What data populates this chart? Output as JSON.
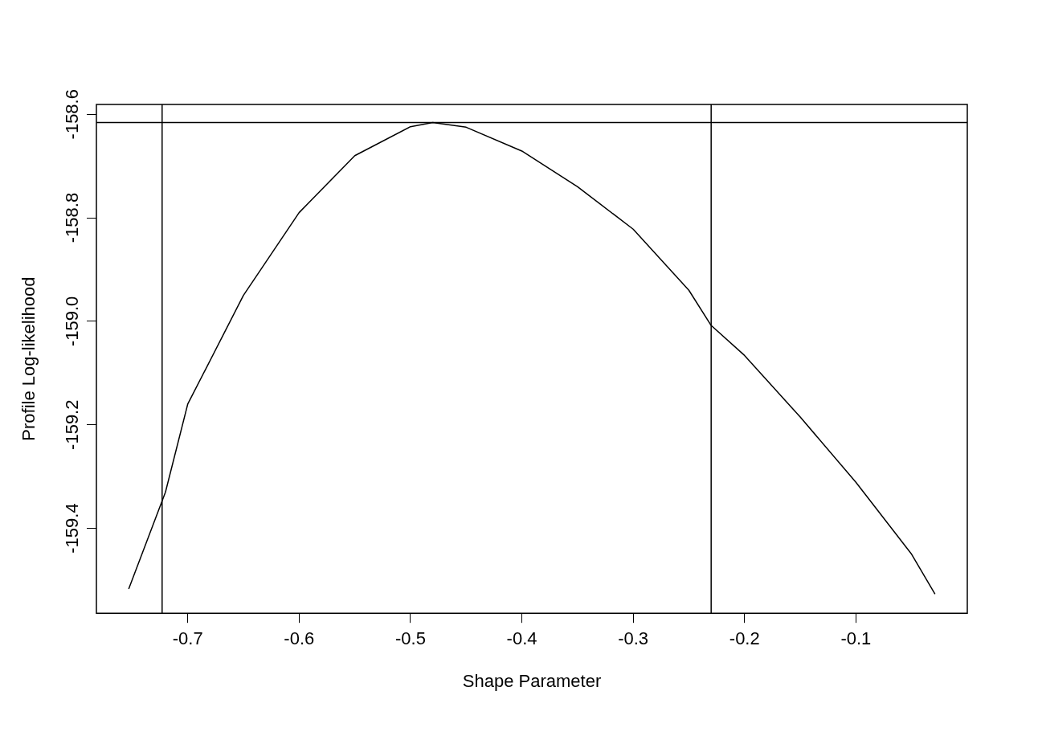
{
  "chart_data": {
    "type": "line",
    "xlabel": "Shape Parameter",
    "ylabel": "Profile Log-likelihood",
    "xlim": [
      -0.782,
      0.0
    ],
    "xticks": [
      -0.7,
      -0.6,
      -0.5,
      -0.4,
      -0.3,
      -0.2,
      -0.1
    ],
    "ylim": [
      -159.564,
      -158.581
    ],
    "yticks": [
      -159.4,
      -159.2,
      {
        "value": -159.0,
        "label": "-159.0"
      },
      -158.8,
      -158.6
    ],
    "grid": false,
    "legend": false,
    "marker": "none",
    "line_style": "solid",
    "series": [
      {
        "color": "#000000",
        "x": [
          -0.753,
          -0.72,
          -0.7,
          -0.65,
          -0.6,
          -0.55,
          -0.5,
          -0.48,
          -0.45,
          -0.4,
          -0.35,
          -0.3,
          -0.25,
          -0.23,
          -0.2,
          -0.15,
          -0.1,
          -0.05,
          -0.029
        ],
        "values": [
          -159.517,
          -159.33,
          -159.16,
          -158.95,
          -158.79,
          -158.68,
          -158.624,
          -158.616,
          -158.625,
          -158.671,
          -158.74,
          -158.822,
          -158.94,
          -159.008,
          -159.066,
          -159.185,
          -159.311,
          -159.45,
          -159.527
        ]
      }
    ],
    "ref_lines": [
      {
        "axis": "y",
        "value": -158.616,
        "color": "#000000"
      },
      {
        "axis": "x",
        "value": -0.723,
        "color": "#000000"
      },
      {
        "axis": "x",
        "value": -0.23,
        "color": "#000000"
      }
    ]
  }
}
